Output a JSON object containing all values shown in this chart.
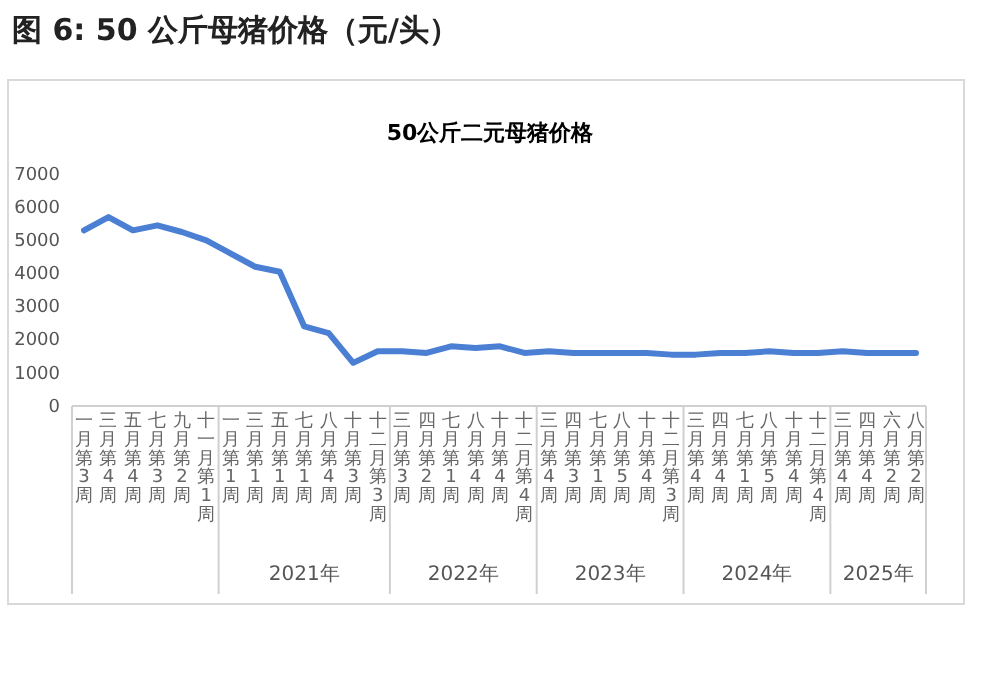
{
  "chart_data": {
    "type": "line",
    "title": "图 6:  50 公斤母猪价格（元/头）",
    "subtitle": "50公斤二元母猪价格",
    "categories": [
      "一月第3周",
      "三月第4周",
      "五月第4周",
      "七月第3周",
      "九月第2周",
      "十一月第1周",
      "一月第1周",
      "三月第1周",
      "五月第1周",
      "七月第1周",
      "八月第4周",
      "十月第3周",
      "十二月第3周",
      "三月第3周",
      "四月第2周",
      "七月第1周",
      "八月第4周",
      "十月第4周",
      "十二月第4周",
      "三月第4周",
      "四月第3周",
      "七月第1周",
      "八月第5周",
      "十月第4周",
      "十二月第3周",
      "三月第4周",
      "四月第4周",
      "七月第1周",
      "八月第5周",
      "十月第4周",
      "十二月第4周",
      "三月第4周",
      "四月第4周",
      "六月第2周",
      "八月第2周"
    ],
    "series": [
      {
        "color": "#4a7fd4",
        "values": [
          5300,
          5700,
          5300,
          5450,
          5250,
          5000,
          4600,
          4200,
          4050,
          2400,
          2200,
          1300,
          1650,
          1650,
          1600,
          1800,
          1750,
          1800,
          1600,
          1650,
          1600,
          1600,
          1600,
          1600,
          1550,
          1550,
          1600,
          1600,
          1650,
          1600,
          1600,
          1650,
          1600,
          1600,
          1600
        ]
      }
    ],
    "ylim": [
      0,
      7000
    ],
    "yticks": [
      0,
      1000,
      2000,
      3000,
      4000,
      5000,
      6000,
      7000
    ],
    "grid": false,
    "marker": "none",
    "line_style": "solid",
    "annotations": [
      "2021年",
      "2022年",
      "2023年",
      "2024年",
      "2025年"
    ]
  }
}
